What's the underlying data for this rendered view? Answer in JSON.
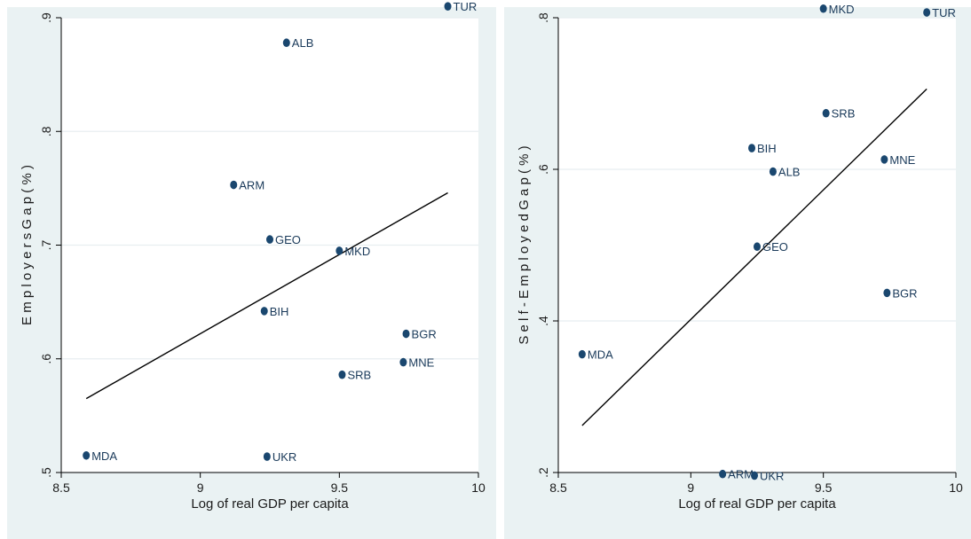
{
  "chart_data": [
    {
      "type": "scatter",
      "title": "",
      "xlabel": "Log of real GDP per capita",
      "ylabel": "E m p l o y e r s  G a p  ( % )",
      "xlim": [
        8.5,
        10
      ],
      "ylim": [
        0.5,
        0.9
      ],
      "xticks": [
        8.5,
        9,
        9.5,
        10
      ],
      "xtick_labels": [
        "8.5",
        "9",
        "9.5",
        "10"
      ],
      "yticks": [
        0.5,
        0.6,
        0.7,
        0.8,
        0.9
      ],
      "ytick_labels": [
        ".5",
        ".6",
        ".7",
        ".8",
        ".9"
      ],
      "grid": true,
      "marker_color": "#1a476f",
      "points": [
        {
          "label": "TUR",
          "x": 9.89,
          "y": 0.91
        },
        {
          "label": "ALB",
          "x": 9.31,
          "y": 0.878
        },
        {
          "label": "ARM",
          "x": 9.12,
          "y": 0.753
        },
        {
          "label": "GEO",
          "x": 9.25,
          "y": 0.705
        },
        {
          "label": "MKD",
          "x": 9.5,
          "y": 0.695
        },
        {
          "label": "BIH",
          "x": 9.23,
          "y": 0.642
        },
        {
          "label": "BGR",
          "x": 9.74,
          "y": 0.622
        },
        {
          "label": "MNE",
          "x": 9.73,
          "y": 0.597
        },
        {
          "label": "SRB",
          "x": 9.51,
          "y": 0.586
        },
        {
          "label": "MDA",
          "x": 8.59,
          "y": 0.515
        },
        {
          "label": "UKR",
          "x": 9.24,
          "y": 0.514
        }
      ],
      "fit_line": {
        "x": [
          8.59,
          9.89
        ],
        "y": [
          0.565,
          0.746
        ]
      }
    },
    {
      "type": "scatter",
      "title": "",
      "xlabel": "Log of real GDP per capita",
      "ylabel": "S e l f - E m p l o y e d  G a p  ( % )",
      "xlim": [
        8.5,
        10
      ],
      "ylim": [
        0.2,
        0.8
      ],
      "xticks": [
        8.5,
        9,
        9.5,
        10
      ],
      "xtick_labels": [
        "8.5",
        "9",
        "9.5",
        "10"
      ],
      "yticks": [
        0.2,
        0.4,
        0.6,
        0.8
      ],
      "ytick_labels": [
        ".2",
        ".4",
        ".6",
        ".8"
      ],
      "grid": true,
      "marker_color": "#1a476f",
      "points": [
        {
          "label": "MKD",
          "x": 9.5,
          "y": 0.812
        },
        {
          "label": "TUR",
          "x": 9.89,
          "y": 0.807
        },
        {
          "label": "SRB",
          "x": 9.51,
          "y": 0.674
        },
        {
          "label": "BIH",
          "x": 9.23,
          "y": 0.628
        },
        {
          "label": "MNE",
          "x": 9.73,
          "y": 0.613
        },
        {
          "label": "ALB",
          "x": 9.31,
          "y": 0.597
        },
        {
          "label": "GEO",
          "x": 9.25,
          "y": 0.498
        },
        {
          "label": "BGR",
          "x": 9.74,
          "y": 0.437
        },
        {
          "label": "MDA",
          "x": 8.59,
          "y": 0.356
        },
        {
          "label": "ARM",
          "x": 9.12,
          "y": 0.198
        },
        {
          "label": "UKR",
          "x": 9.24,
          "y": 0.196
        }
      ],
      "fit_line": {
        "x": [
          8.59,
          9.89
        ],
        "y": [
          0.262,
          0.706
        ]
      }
    }
  ]
}
